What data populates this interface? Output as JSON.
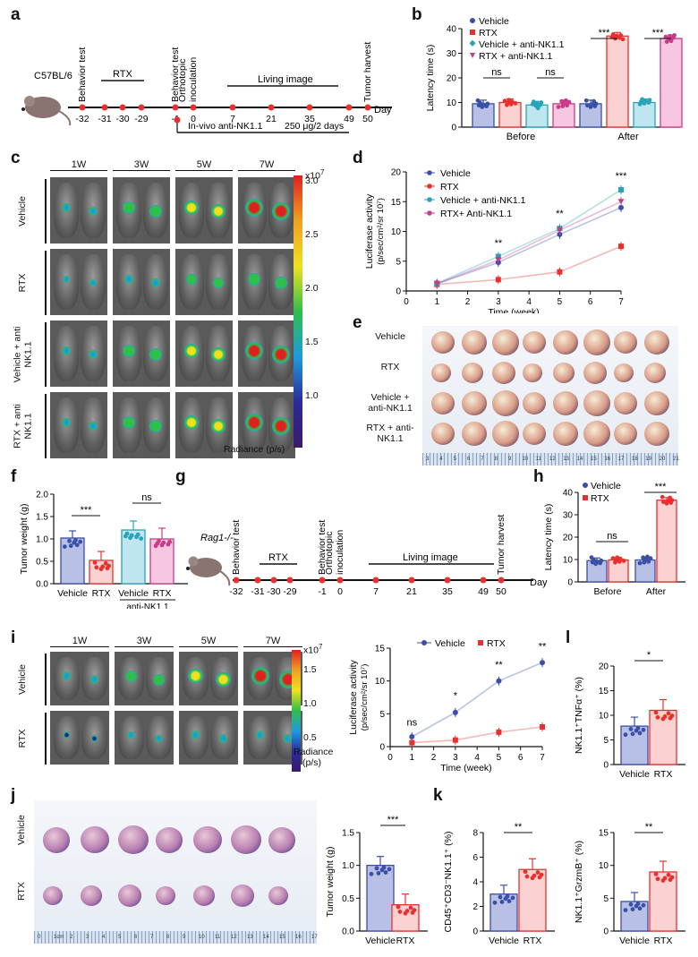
{
  "panels": {
    "a": "a",
    "b": "b",
    "c": "c",
    "d": "d",
    "e": "e",
    "f": "f",
    "g": "g",
    "h": "h",
    "i": "i",
    "j": "j",
    "k": "k",
    "l": "l"
  },
  "colors": {
    "vehicle": "#3a4fa8",
    "rtx": "#e8312f",
    "vehicle_nk": "#29a3b8",
    "rtx_nk": "#c83a8a",
    "vehicle_fill": "#b9c0e6",
    "rtx_fill": "#fbd2d2",
    "vehicle_nk_fill": "#bfe6ef",
    "rtx_nk_fill": "#f7c6e0"
  },
  "timeline_a": {
    "mouse_label": "C57BL/6",
    "ticks": [
      "-32",
      "-31",
      "-30",
      "-29",
      "-1",
      "0",
      "7",
      "21",
      "35",
      "49",
      "50"
    ],
    "unit": "Day",
    "events": [
      "Behavior test",
      "Behavior test",
      "Orthotopic inoculation",
      "Tumor harvest"
    ],
    "rtx_label": "RTX",
    "living_label": "Living image",
    "invivo_label": "In-vivo anti-NK1.1",
    "dose_label": "250 μg/2 days"
  },
  "timeline_g": {
    "mouse_label": "Rag1-/-",
    "ticks": [
      "-32",
      "-31",
      "-30",
      "-29",
      "-1",
      "0",
      "7",
      "21",
      "35",
      "49",
      "50"
    ],
    "unit": "Day",
    "events": [
      "Behavior test",
      "Behavior test",
      "Orthotopic inoculation",
      "Tumor harvest"
    ],
    "rtx_label": "RTX",
    "living_label": "Living image"
  },
  "imaging_c": {
    "weeks": [
      "1W",
      "3W",
      "5W",
      "7W"
    ],
    "rows": [
      "Vehicle",
      "RTX",
      "Vehicle + anti NK1.1",
      "RTX + anti NK1.1"
    ],
    "scale_exp": "x10",
    "scale_power": "7",
    "scale_ticks": [
      "3.0",
      "2.5",
      "2.0",
      "1.5",
      "1.0"
    ],
    "scale_label": "Radiance (p/s)"
  },
  "imaging_i": {
    "weeks": [
      "1W",
      "3W",
      "5W",
      "7W"
    ],
    "rows": [
      "Vehicle",
      "RTX"
    ],
    "scale_exp": "x10",
    "scale_power": "7",
    "scale_ticks": [
      "1.5",
      "1.0",
      "0.5"
    ],
    "scale_label": "Radiance",
    "scale_label2": "(p/s)"
  },
  "tumors_e": {
    "rows": [
      "Vehicle",
      "RTX",
      "Vehicle + anti-NK1.1",
      "RTX + anti-NK1.1"
    ],
    "ruler_ticks": [
      "3",
      "4",
      "5",
      "6",
      "7",
      "8",
      "9",
      "10",
      "11",
      "12",
      "13",
      "14",
      "15",
      "16",
      "17",
      "18",
      "19",
      "20",
      "21"
    ]
  },
  "tumors_j": {
    "rows": [
      "Vehicle",
      "RTX"
    ],
    "ruler_ticks": [
      "0",
      "1cm",
      "2",
      "3",
      "4",
      "5",
      "6",
      "7",
      "8",
      "9",
      "10",
      "11",
      "12",
      "13",
      "14",
      "15",
      "16",
      "17"
    ]
  },
  "chart_data": [
    {
      "id": "b",
      "type": "bar",
      "categories": [
        "Before",
        "After"
      ],
      "ylabel": "Latency time (s)",
      "ylim": [
        0,
        40
      ],
      "yticks": [
        "0",
        "10",
        "20",
        "30",
        "40"
      ],
      "legend": [
        "Vehicle",
        "RTX",
        "Vehicle + anti-NK1.1",
        "RTX + anti-NK1.1"
      ],
      "series": [
        {
          "name": "Vehicle",
          "values": [
            9.5,
            9.5
          ]
        },
        {
          "name": "RTX",
          "values": [
            10,
            37
          ]
        },
        {
          "name": "Vehicle + anti-NK1.1",
          "values": [
            9,
            10
          ]
        },
        {
          "name": "RTX + anti-NK1.1",
          "values": [
            9.5,
            36
          ]
        }
      ],
      "annotations": [
        "ns",
        "ns",
        "***",
        "***"
      ]
    },
    {
      "id": "d",
      "type": "line",
      "x": [
        1,
        3,
        5,
        7
      ],
      "xlabel": "Time (week)",
      "xlim": [
        0,
        7
      ],
      "xticks": [
        "0",
        "1",
        "2",
        "3",
        "4",
        "5",
        "6",
        "7"
      ],
      "ylabel": "Luciferase activity",
      "ylabel2": "(p/sec/cm²/sr 10⁷)",
      "ylim": [
        0,
        20
      ],
      "yticks": [
        "0",
        "5",
        "10",
        "15",
        "20"
      ],
      "series": [
        {
          "name": "Vehicle",
          "values": [
            1.2,
            4.8,
            9.5,
            14
          ]
        },
        {
          "name": "RTX",
          "values": [
            1.1,
            1.9,
            3.2,
            7.5
          ]
        },
        {
          "name": "Vehicle + anti-NK1.1",
          "values": [
            1.3,
            5.8,
            10.5,
            17
          ]
        },
        {
          "name": "RTX+ Anti-NK1.1",
          "values": [
            1.2,
            5.2,
            10.2,
            15
          ]
        }
      ],
      "annotations": [
        "**",
        "**",
        "***"
      ]
    },
    {
      "id": "f",
      "type": "bar",
      "categories": [
        "Vehicle",
        "RTX",
        "Vehicle",
        "RTX"
      ],
      "group_label": "anti-NK1.1",
      "ylabel": "Tumor weight (g)",
      "ylim": [
        0,
        2.0
      ],
      "yticks": [
        "0.0",
        "0.5",
        "1.0",
        "1.5",
        "2.0"
      ],
      "values": [
        1.02,
        0.52,
        1.2,
        1.0
      ],
      "annotations": [
        "***",
        "ns"
      ]
    },
    {
      "id": "h",
      "type": "bar",
      "categories": [
        "Before",
        "After"
      ],
      "ylabel": "Latency time (s)",
      "ylim": [
        0,
        40
      ],
      "yticks": [
        "0",
        "10",
        "20",
        "30",
        "40"
      ],
      "legend": [
        "Vehicle",
        "RTX"
      ],
      "series": [
        {
          "name": "Vehicle",
          "values": [
            9.5,
            9.8
          ]
        },
        {
          "name": "RTX",
          "values": [
            9.8,
            36.5
          ]
        }
      ],
      "annotations": [
        "ns",
        "***"
      ]
    },
    {
      "id": "i",
      "type": "line",
      "x": [
        1,
        3,
        5,
        7
      ],
      "xlabel": "Time (week)",
      "xlim": [
        0,
        7
      ],
      "xticks": [
        "0",
        "1",
        "2",
        "3",
        "4",
        "5",
        "6",
        "7"
      ],
      "ylabel": "Luciferase activity",
      "ylabel2": "(p/sec/cm²/sr 10⁷)",
      "ylim": [
        0,
        15
      ],
      "yticks": [
        "0",
        "5",
        "10",
        "15"
      ],
      "series": [
        {
          "name": "Vehicle",
          "values": [
            1.5,
            5.2,
            10,
            12.8
          ]
        },
        {
          "name": "RTX",
          "values": [
            0.6,
            1.0,
            2.2,
            3.0
          ]
        }
      ],
      "annotations": [
        "ns",
        "*",
        "**",
        "**"
      ]
    },
    {
      "id": "j",
      "type": "bar",
      "categories": [
        "Vehicle",
        "RTX"
      ],
      "ylabel": "Tumor weight (g)",
      "ylim": [
        0,
        1.5
      ],
      "yticks": [
        "0.0",
        "0.5",
        "1.0",
        "1.5"
      ],
      "values": [
        1.0,
        0.4
      ],
      "annotations": [
        "***"
      ]
    },
    {
      "id": "k1",
      "type": "bar",
      "categories": [
        "Vehicle",
        "RTX"
      ],
      "ylabel": "CD45⁺CD3⁻NK1.1⁺ (%)",
      "ylim": [
        0,
        8
      ],
      "yticks": [
        "0",
        "2",
        "4",
        "6",
        "8"
      ],
      "values": [
        3.0,
        5.0
      ],
      "annotations": [
        "**"
      ]
    },
    {
      "id": "k2",
      "type": "bar",
      "categories": [
        "Vehicle",
        "RTX"
      ],
      "ylabel": "NK1.1⁺GrzmB⁺ (%)",
      "ylim": [
        0,
        15
      ],
      "yticks": [
        "0",
        "5",
        "10",
        "15"
      ],
      "values": [
        4.5,
        9.0
      ],
      "annotations": [
        "**"
      ]
    },
    {
      "id": "l",
      "type": "bar",
      "categories": [
        "Vehicle",
        "RTX"
      ],
      "ylabel": "NK1.1⁺TNFα⁺ (%)",
      "ylim": [
        0,
        20
      ],
      "yticks": [
        "0",
        "5",
        "10",
        "15",
        "20"
      ],
      "values": [
        7.8,
        11.0
      ],
      "annotations": [
        "*"
      ]
    }
  ]
}
